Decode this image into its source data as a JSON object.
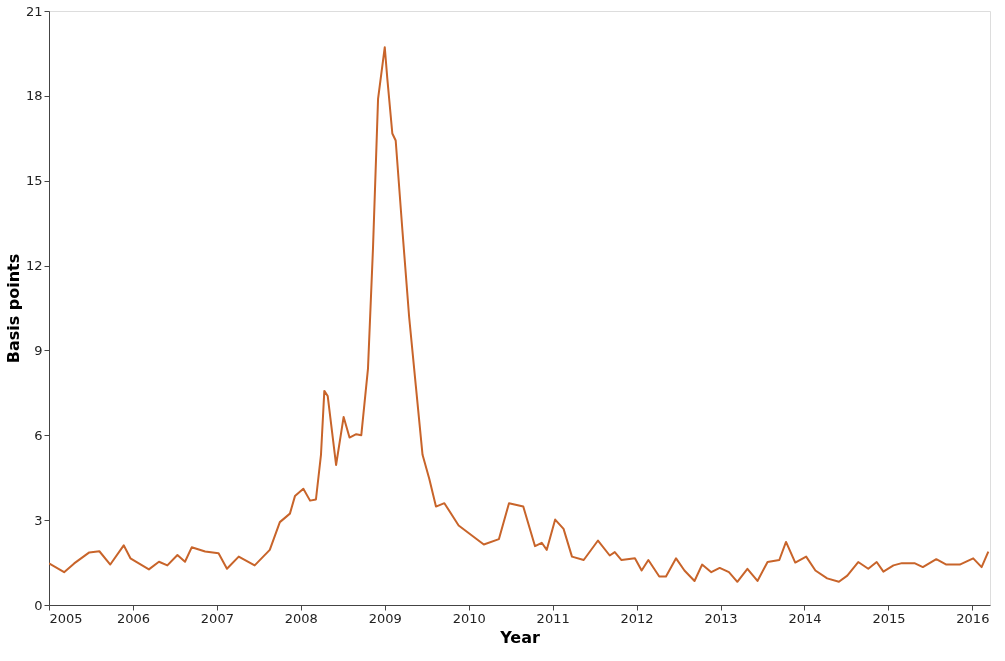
{
  "chart_data": {
    "type": "line",
    "xlabel": "Year",
    "ylabel": "Basis points",
    "x": [
      2005.0,
      2005.18,
      2005.3,
      2005.48,
      2005.6,
      2005.73,
      2005.89,
      2005.97,
      2006.19,
      2006.31,
      2006.41,
      2006.53,
      2006.62,
      2006.7,
      2006.86,
      2007.02,
      2007.12,
      2007.26,
      2007.45,
      2007.63,
      2007.75,
      2007.87,
      2007.93,
      2008.03,
      2008.11,
      2008.18,
      2008.24,
      2008.28,
      2008.32,
      2008.42,
      2008.51,
      2008.58,
      2008.66,
      2008.72,
      2008.8,
      2008.86,
      2008.92,
      2009.0,
      2009.03,
      2009.09,
      2009.13,
      2009.21,
      2009.29,
      2009.37,
      2009.45,
      2009.53,
      2009.61,
      2009.71,
      2009.88,
      2010.18,
      2010.36,
      2010.48,
      2010.65,
      2010.79,
      2010.87,
      2010.93,
      2011.03,
      2011.13,
      2011.23,
      2011.37,
      2011.54,
      2011.68,
      2011.74,
      2011.82,
      2011.98,
      2012.06,
      2012.14,
      2012.27,
      2012.35,
      2012.47,
      2012.57,
      2012.69,
      2012.78,
      2012.89,
      2012.99,
      2013.1,
      2013.2,
      2013.32,
      2013.44,
      2013.56,
      2013.7,
      2013.78,
      2013.89,
      2014.02,
      2014.13,
      2014.27,
      2014.41,
      2014.51,
      2014.64,
      2014.76,
      2014.86,
      2014.94,
      2015.06,
      2015.16,
      2015.31,
      2015.41,
      2015.57,
      2015.69,
      2015.85,
      2016.01,
      2016.11,
      2016.19
    ],
    "series": [
      {
        "color": "#c8642a",
        "values": [
          1.47,
          1.16,
          1.47,
          1.86,
          1.9,
          1.43,
          2.11,
          1.65,
          1.26,
          1.53,
          1.4,
          1.77,
          1.53,
          2.04,
          1.89,
          1.83,
          1.28,
          1.71,
          1.4,
          1.95,
          2.93,
          3.23,
          3.85,
          4.11,
          3.69,
          3.73,
          5.31,
          7.57,
          7.39,
          4.95,
          6.65,
          5.92,
          6.04,
          6.0,
          8.36,
          12.64,
          17.89,
          19.72,
          18.62,
          16.67,
          16.42,
          13.25,
          10.19,
          7.75,
          5.31,
          4.46,
          3.48,
          3.6,
          2.81,
          2.14,
          2.33,
          3.6,
          3.48,
          2.08,
          2.2,
          1.95,
          3.02,
          2.69,
          1.71,
          1.59,
          2.28,
          1.75,
          1.87,
          1.59,
          1.65,
          1.22,
          1.59,
          1.01,
          1.01,
          1.65,
          1.22,
          0.85,
          1.43,
          1.16,
          1.31,
          1.16,
          0.82,
          1.28,
          0.85,
          1.52,
          1.59,
          2.23,
          1.5,
          1.71,
          1.22,
          0.94,
          0.82,
          1.04,
          1.52,
          1.28,
          1.52,
          1.18,
          1.4,
          1.48,
          1.48,
          1.34,
          1.62,
          1.43,
          1.43,
          1.65,
          1.34,
          1.89
        ]
      }
    ],
    "xlim": [
      2005,
      2016.21
    ],
    "xticks": [
      2005,
      2006,
      2007,
      2008,
      2009,
      2010,
      2011,
      2012,
      2013,
      2014,
      2015,
      2016
    ],
    "ylim": [
      0,
      21
    ],
    "yticks": [
      0,
      3,
      6,
      9,
      12,
      15,
      18,
      21
    ],
    "grid": false,
    "marker": "none",
    "line_style": "solid"
  }
}
